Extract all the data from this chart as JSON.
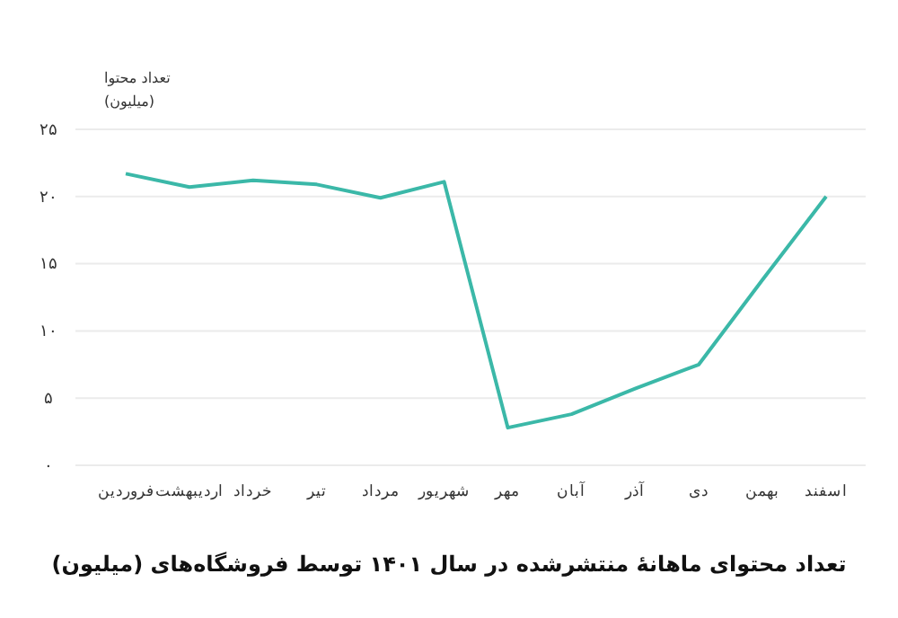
{
  "chart_data": {
    "type": "line",
    "title": "تعداد محتوای ماهانهٔ منتشرشده در سال ۱۴۰۱ توسط فروشگاه‌های (میلیون)",
    "ylabel": "تعداد محتوا (میلیون)",
    "categories": [
      "فروردین",
      "اردیبهشت",
      "خرداد",
      "تیر",
      "مرداد",
      "شهریور",
      "مهر",
      "آبان",
      "آذر",
      "دی",
      "بهمن",
      "اسفند"
    ],
    "series": [
      {
        "color": "#3bb8a8",
        "values": [
          21.7,
          20.7,
          21.2,
          20.9,
          19.9,
          21.1,
          2.8,
          3.8,
          5.7,
          7.5,
          13.8,
          20
        ]
      }
    ],
    "ylim": [
      0,
      25
    ],
    "yticks": [
      {
        "value": 0,
        "label": "۰"
      },
      {
        "value": 5,
        "label": "۵"
      },
      {
        "value": 10,
        "label": "۱۰"
      },
      {
        "value": 15,
        "label": "۱۵"
      },
      {
        "value": 20,
        "label": "۲۰"
      },
      {
        "value": 25,
        "label": "۲۵"
      }
    ],
    "grid": "y",
    "marker": "none",
    "line_style": "solid"
  }
}
